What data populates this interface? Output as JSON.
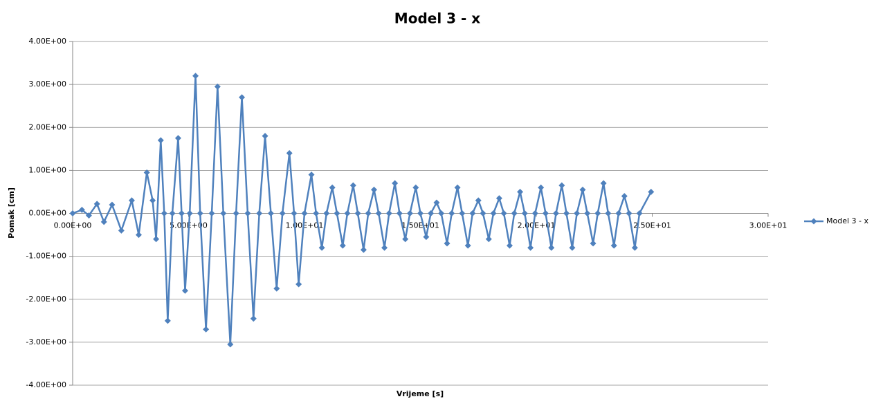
{
  "chart_data": {
    "type": "scatter-line",
    "title": "Model 3 - x",
    "x_label": "Vrijeme [s]",
    "y_label": "Pomak [cm]",
    "x": [
      0,
      0.4,
      0.7,
      1.05,
      1.35,
      1.7,
      2.1,
      2.55,
      2.85,
      3.2,
      3.45,
      3.6,
      3.8,
      3.95,
      4.1,
      4.3,
      4.55,
      4.7,
      4.85,
      5.05,
      5.3,
      5.5,
      5.75,
      6.0,
      6.25,
      6.5,
      6.8,
      7.05,
      7.3,
      7.55,
      7.8,
      8.05,
      8.3,
      8.55,
      8.8,
      9.05,
      9.35,
      9.55,
      9.75,
      10.0,
      10.3,
      10.5,
      10.75,
      10.95,
      11.2,
      11.4,
      11.65,
      11.85,
      12.1,
      12.3,
      12.55,
      12.75,
      13.0,
      13.2,
      13.45,
      13.65,
      13.9,
      14.1,
      14.35,
      14.55,
      14.8,
      15.0,
      15.25,
      15.45,
      15.7,
      15.9,
      16.15,
      16.35,
      16.6,
      16.8,
      17.05,
      17.25,
      17.5,
      17.7,
      17.95,
      18.15,
      18.4,
      18.6,
      18.85,
      19.05,
      19.3,
      19.5,
      19.75,
      19.95,
      20.2,
      20.4,
      20.65,
      20.85,
      21.1,
      21.3,
      21.55,
      21.75,
      22.0,
      22.2,
      22.45,
      22.65,
      22.9,
      23.1,
      23.35,
      23.55,
      23.8,
      24.0,
      24.25,
      24.45,
      24.95
    ],
    "series": [
      {
        "name": "Model 3 - x",
        "color": "#4f81bd",
        "values": [
          0,
          0.08,
          -0.05,
          0.22,
          -0.2,
          0.2,
          -0.4,
          0.3,
          -0.5,
          0.95,
          0.3,
          -0.6,
          1.7,
          0,
          -2.5,
          0,
          1.75,
          0,
          -1.8,
          0,
          3.2,
          0,
          -2.7,
          0,
          2.95,
          0,
          -3.05,
          0,
          2.7,
          0,
          -2.45,
          0,
          1.8,
          0,
          -1.75,
          0,
          1.4,
          0,
          -1.65,
          0,
          0.9,
          0,
          -0.8,
          0,
          0.6,
          0,
          -0.75,
          0,
          0.65,
          0,
          -0.85,
          0,
          0.55,
          0,
          -0.8,
          0,
          0.7,
          0,
          -0.6,
          0,
          0.6,
          0,
          -0.55,
          0,
          0.25,
          0,
          -0.7,
          0,
          0.6,
          0,
          -0.75,
          0,
          0.3,
          0,
          -0.6,
          0,
          0.35,
          0,
          -0.75,
          0,
          0.5,
          0,
          -0.8,
          0,
          0.6,
          0,
          -0.8,
          0,
          0.65,
          0,
          -0.8,
          0,
          0.55,
          0,
          -0.7,
          0,
          0.7,
          0,
          -0.75,
          0,
          0.4,
          0,
          -0.8,
          0,
          0.5
        ]
      }
    ],
    "xlim": [
      0,
      30
    ],
    "ylim": [
      -4,
      4
    ],
    "xticks": [
      {
        "value": 0,
        "label": "0.00E+00"
      },
      {
        "value": 5,
        "label": "5.00E+00"
      },
      {
        "value": 10,
        "label": "1.00E+01"
      },
      {
        "value": 15,
        "label": "1.50E+01"
      },
      {
        "value": 20,
        "label": "2.00E+01"
      },
      {
        "value": 25,
        "label": "2.50E+01"
      },
      {
        "value": 30,
        "label": "3.00E+01"
      }
    ],
    "yticks": [
      {
        "value": -4,
        "label": "-4.00E+00"
      },
      {
        "value": -3,
        "label": "-3.00E+00"
      },
      {
        "value": -2,
        "label": "-2.00E+00"
      },
      {
        "value": -1,
        "label": "-1.00E+00"
      },
      {
        "value": 0,
        "label": "0.00E+00"
      },
      {
        "value": 1,
        "label": "1.00E+00"
      },
      {
        "value": 2,
        "label": "2.00E+00"
      },
      {
        "value": 3,
        "label": "3.00E+00"
      },
      {
        "value": 4,
        "label": "4.00E+00"
      }
    ],
    "grid": true,
    "legend": "right"
  }
}
